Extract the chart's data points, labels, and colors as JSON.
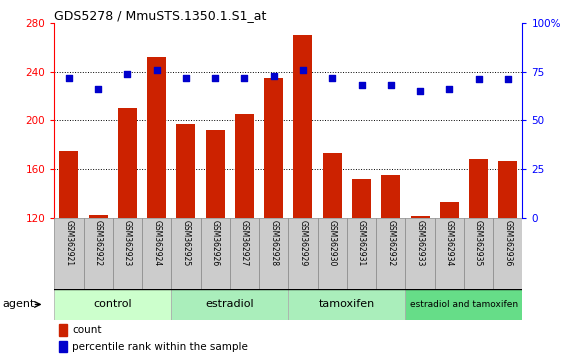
{
  "title": "GDS5278 / MmuSTS.1350.1.S1_at",
  "samples": [
    "GSM362921",
    "GSM362922",
    "GSM362923",
    "GSM362924",
    "GSM362925",
    "GSM362926",
    "GSM362927",
    "GSM362928",
    "GSM362929",
    "GSM362930",
    "GSM362931",
    "GSM362932",
    "GSM362933",
    "GSM362934",
    "GSM362935",
    "GSM362936"
  ],
  "counts": [
    175,
    122,
    210,
    252,
    197,
    192,
    205,
    235,
    270,
    173,
    152,
    155,
    121,
    133,
    168,
    167
  ],
  "percentiles": [
    72,
    66,
    74,
    76,
    72,
    72,
    72,
    73,
    76,
    72,
    68,
    68,
    65,
    66,
    71,
    71
  ],
  "ylim_left": [
    120,
    280
  ],
  "ylim_right": [
    0,
    100
  ],
  "yticks_left": [
    120,
    160,
    200,
    240,
    280
  ],
  "yticks_right": [
    0,
    25,
    50,
    75,
    100
  ],
  "bar_color": "#cc2200",
  "dot_color": "#0000cc",
  "groups": [
    {
      "label": "control",
      "start": 0,
      "end": 3,
      "color": "#ccffcc"
    },
    {
      "label": "estradiol",
      "start": 4,
      "end": 7,
      "color": "#aaeebb"
    },
    {
      "label": "tamoxifen",
      "start": 8,
      "end": 11,
      "color": "#aaeebb"
    },
    {
      "label": "estradiol and tamoxifen",
      "start": 12,
      "end": 15,
      "color": "#66dd88"
    }
  ],
  "agent_label": "agent",
  "legend_bar_label": "count",
  "legend_dot_label": "percentile rank within the sample",
  "bg_color": "#ffffff",
  "label_box_color": "#cccccc",
  "label_box_edge": "#888888"
}
